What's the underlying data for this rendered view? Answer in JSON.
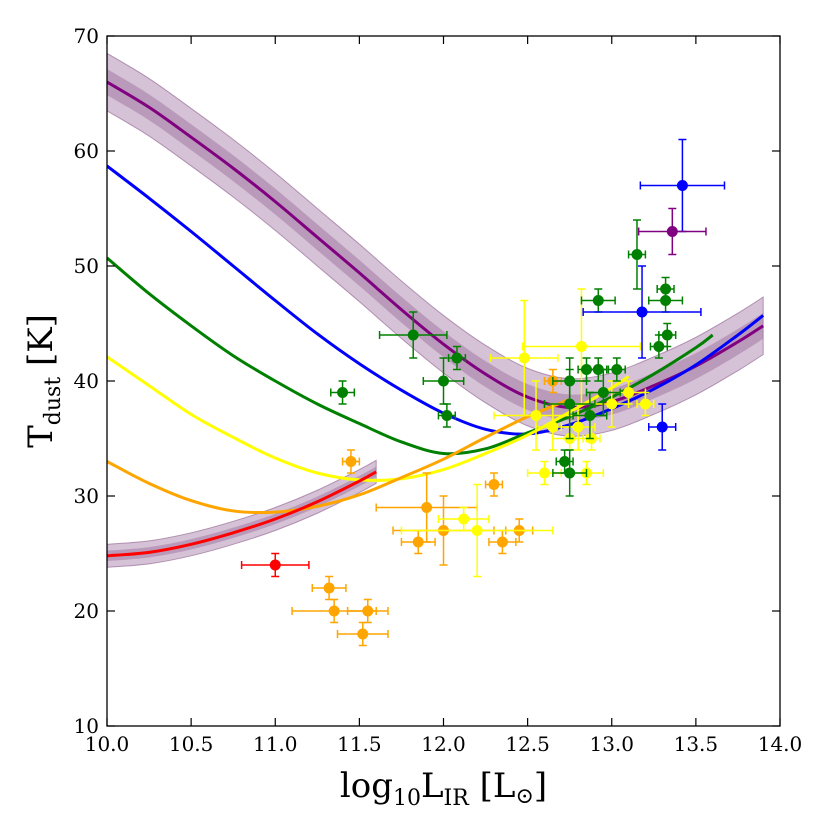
{
  "chart_data": {
    "type": "scatter",
    "title": "",
    "xlabel": {
      "main": "log",
      "sub": "10",
      "mid": "L",
      "sub2": "IR",
      "unit": " [L",
      "unit_sym": "⊙",
      "end": "]"
    },
    "ylabel": {
      "main": "T",
      "sub": "dust",
      "unit": " [K]"
    },
    "xlim": [
      10.0,
      14.0
    ],
    "ylim": [
      10,
      70
    ],
    "xticks": [
      "10.0",
      "10.5",
      "11.0",
      "11.5",
      "12.0",
      "12.5",
      "13.0",
      "13.5",
      "14.0"
    ],
    "yticks": [
      "10",
      "20",
      "30",
      "40",
      "50",
      "60",
      "70"
    ],
    "colors": {
      "red": "#ff0000",
      "orange": "#ffa500",
      "yellow": "#ffff00",
      "green": "#008000",
      "blue": "#0000ff",
      "purple": "#800080",
      "band": "#b590b5"
    },
    "curves": [
      {
        "name": "purple-model",
        "color": "#800080",
        "band": 2.5,
        "x": [
          10.0,
          10.25,
          10.5,
          10.75,
          11.0,
          11.25,
          11.5,
          11.75,
          12.0,
          12.25,
          12.5,
          12.75,
          13.0,
          13.25,
          13.5,
          13.75,
          13.9
        ],
        "y": [
          66,
          63.8,
          61.2,
          58.5,
          55.6,
          52.5,
          49.4,
          46.2,
          43.2,
          40.6,
          38.6,
          37.7,
          38.2,
          39.6,
          41.3,
          43.4,
          44.8
        ]
      },
      {
        "name": "blue-model",
        "color": "#0000ff",
        "x": [
          10.0,
          10.25,
          10.5,
          10.75,
          11.0,
          11.25,
          11.5,
          11.75,
          12.0,
          12.25,
          12.5,
          12.75,
          13.0,
          13.25,
          13.5,
          13.75,
          13.9
        ],
        "y": [
          58.7,
          55.9,
          53.0,
          50.0,
          47.0,
          44.1,
          41.5,
          39.2,
          37.2,
          35.8,
          35.4,
          36.2,
          37.6,
          39.3,
          41.4,
          44.0,
          45.7
        ]
      },
      {
        "name": "green-model",
        "color": "#008000",
        "x": [
          10.0,
          10.25,
          10.5,
          10.75,
          11.0,
          11.25,
          11.5,
          11.75,
          12.0,
          12.25,
          12.5,
          12.75,
          13.0,
          13.25,
          13.5,
          13.6
        ],
        "y": [
          50.7,
          47.6,
          44.8,
          42.2,
          40.0,
          38.0,
          36.3,
          34.7,
          33.7,
          34.1,
          35.5,
          36.9,
          38.6,
          40.6,
          42.9,
          44.0
        ]
      },
      {
        "name": "yellow-model",
        "color": "#ffff00",
        "x": [
          10.0,
          10.25,
          10.5,
          10.75,
          11.0,
          11.25,
          11.5,
          11.75,
          12.0,
          12.25,
          12.5,
          12.75,
          13.0,
          13.1
        ],
        "y": [
          42.1,
          39.6,
          37.1,
          35.1,
          33.3,
          32.0,
          31.4,
          31.5,
          32.3,
          33.7,
          35.3,
          37.3,
          39.4,
          40.4
        ]
      },
      {
        "name": "orange-model",
        "color": "#ffa500",
        "x": [
          10.0,
          10.25,
          10.5,
          10.75,
          11.0,
          11.25,
          11.5,
          11.75,
          12.0,
          12.25,
          12.5,
          12.75
        ],
        "y": [
          33.0,
          31.1,
          29.6,
          28.7,
          28.6,
          29.1,
          30.1,
          31.6,
          33.2,
          35.1,
          36.9,
          38.4
        ]
      },
      {
        "name": "red-model",
        "color": "#ff0000",
        "band": 1.0,
        "x": [
          10.0,
          10.25,
          10.5,
          10.75,
          11.0,
          11.25,
          11.5,
          11.6
        ],
        "y": [
          24.8,
          25.1,
          25.8,
          26.8,
          28.0,
          29.5,
          31.3,
          32.1
        ]
      }
    ],
    "points": [
      {
        "x": 11.0,
        "y": 24,
        "xerr": 0.2,
        "yerr": 1,
        "color": "#ff0000"
      },
      {
        "x": 11.32,
        "y": 22,
        "xerr": 0.1,
        "yerr": 1,
        "color": "#ffa500"
      },
      {
        "x": 11.35,
        "y": 20,
        "xerr": 0.25,
        "yerr": 1,
        "color": "#ffa500"
      },
      {
        "x": 11.55,
        "y": 20,
        "xerr": 0.12,
        "yerr": 1,
        "color": "#ffa500"
      },
      {
        "x": 11.52,
        "y": 18,
        "xerr": 0.15,
        "yerr": 1,
        "color": "#ffa500"
      },
      {
        "x": 11.45,
        "y": 33,
        "xerr": 0.05,
        "yerr": 1,
        "color": "#ffa500"
      },
      {
        "x": 11.85,
        "y": 26,
        "xerr": 0.1,
        "yerr": 1,
        "color": "#ffa500"
      },
      {
        "x": 11.9,
        "y": 29,
        "xerr": 0.3,
        "yerr": 3,
        "color": "#ffa500"
      },
      {
        "x": 12.0,
        "y": 27,
        "xerr": 0.3,
        "yerr": 3,
        "color": "#ffa500"
      },
      {
        "x": 12.3,
        "y": 31,
        "xerr": 0.05,
        "yerr": 1,
        "color": "#ffa500"
      },
      {
        "x": 12.35,
        "y": 26,
        "xerr": 0.08,
        "yerr": 1,
        "color": "#ffa500"
      },
      {
        "x": 12.45,
        "y": 27,
        "xerr": 0.08,
        "yerr": 1,
        "color": "#ffa500"
      },
      {
        "x": 12.65,
        "y": 40,
        "xerr": 0.05,
        "yerr": 1,
        "color": "#ffa500"
      },
      {
        "x": 12.12,
        "y": 28,
        "xerr": 0.15,
        "yerr": 1,
        "color": "#ffff00"
      },
      {
        "x": 12.2,
        "y": 27,
        "xerr": 0.45,
        "yerr": 4,
        "color": "#ffff00"
      },
      {
        "x": 12.48,
        "y": 42,
        "xerr": 0.2,
        "yerr": 5,
        "color": "#ffff00"
      },
      {
        "x": 12.55,
        "y": 37,
        "xerr": 0.25,
        "yerr": 3,
        "color": "#ffff00"
      },
      {
        "x": 12.6,
        "y": 32,
        "xerr": 0.1,
        "yerr": 1,
        "color": "#ffff00"
      },
      {
        "x": 12.65,
        "y": 36,
        "xerr": 0.1,
        "yerr": 2,
        "color": "#ffff00"
      },
      {
        "x": 12.75,
        "y": 35,
        "xerr": 0.1,
        "yerr": 1,
        "color": "#ffff00"
      },
      {
        "x": 12.8,
        "y": 36,
        "xerr": 0.1,
        "yerr": 2,
        "color": "#ffff00"
      },
      {
        "x": 12.82,
        "y": 43,
        "xerr": 0.35,
        "yerr": 5,
        "color": "#ffff00"
      },
      {
        "x": 12.85,
        "y": 32,
        "xerr": 0.1,
        "yerr": 1,
        "color": "#ffff00"
      },
      {
        "x": 12.88,
        "y": 35,
        "xerr": 0.05,
        "yerr": 1,
        "color": "#ffff00"
      },
      {
        "x": 13.0,
        "y": 38,
        "xerr": 0.1,
        "yerr": 2,
        "color": "#ffff00"
      },
      {
        "x": 13.1,
        "y": 39,
        "xerr": 0.1,
        "yerr": 1,
        "color": "#ffff00"
      },
      {
        "x": 13.2,
        "y": 38,
        "xerr": 0.05,
        "yerr": 1,
        "color": "#ffff00"
      },
      {
        "x": 11.4,
        "y": 39,
        "xerr": 0.07,
        "yerr": 1,
        "color": "#008000"
      },
      {
        "x": 11.82,
        "y": 44,
        "xerr": 0.2,
        "yerr": 2,
        "color": "#008000"
      },
      {
        "x": 12.0,
        "y": 40,
        "xerr": 0.12,
        "yerr": 2,
        "color": "#008000"
      },
      {
        "x": 12.02,
        "y": 37,
        "xerr": 0.05,
        "yerr": 1,
        "color": "#008000"
      },
      {
        "x": 12.08,
        "y": 42,
        "xerr": 0.05,
        "yerr": 1,
        "color": "#008000"
      },
      {
        "x": 12.72,
        "y": 33,
        "xerr": 0.05,
        "yerr": 1,
        "color": "#008000"
      },
      {
        "x": 12.75,
        "y": 32,
        "xerr": 0.1,
        "yerr": 2,
        "color": "#008000"
      },
      {
        "x": 12.75,
        "y": 38,
        "xerr": 0.15,
        "yerr": 3,
        "color": "#008000"
      },
      {
        "x": 12.75,
        "y": 40,
        "xerr": 0.1,
        "yerr": 2,
        "color": "#008000"
      },
      {
        "x": 12.85,
        "y": 41,
        "xerr": 0.05,
        "yerr": 1,
        "color": "#008000"
      },
      {
        "x": 12.87,
        "y": 37,
        "xerr": 0.1,
        "yerr": 2,
        "color": "#008000"
      },
      {
        "x": 12.92,
        "y": 47,
        "xerr": 0.1,
        "yerr": 1,
        "color": "#008000"
      },
      {
        "x": 12.92,
        "y": 41,
        "xerr": 0.05,
        "yerr": 1,
        "color": "#008000"
      },
      {
        "x": 12.95,
        "y": 39,
        "xerr": 0.1,
        "yerr": 2,
        "color": "#008000"
      },
      {
        "x": 13.03,
        "y": 41,
        "xerr": 0.05,
        "yerr": 1,
        "color": "#008000"
      },
      {
        "x": 13.15,
        "y": 51,
        "xerr": 0.05,
        "yerr": 3,
        "color": "#008000"
      },
      {
        "x": 13.28,
        "y": 43,
        "xerr": 0.05,
        "yerr": 1,
        "color": "#008000"
      },
      {
        "x": 13.32,
        "y": 48,
        "xerr": 0.05,
        "yerr": 1,
        "color": "#008000"
      },
      {
        "x": 13.32,
        "y": 47,
        "xerr": 0.1,
        "yerr": 1,
        "color": "#008000"
      },
      {
        "x": 13.33,
        "y": 44,
        "xerr": 0.05,
        "yerr": 1,
        "color": "#008000"
      },
      {
        "x": 13.18,
        "y": 46,
        "xerr": 0.35,
        "yerr": 4,
        "color": "#0000ff"
      },
      {
        "x": 13.3,
        "y": 36,
        "xerr": 0.08,
        "yerr": 2,
        "color": "#0000ff"
      },
      {
        "x": 13.42,
        "y": 57,
        "xerr": 0.25,
        "yerr": 4,
        "color": "#0000ff"
      },
      {
        "x": 13.36,
        "y": 53,
        "xerr": 0.2,
        "yerr": 2,
        "color": "#800080"
      }
    ]
  }
}
